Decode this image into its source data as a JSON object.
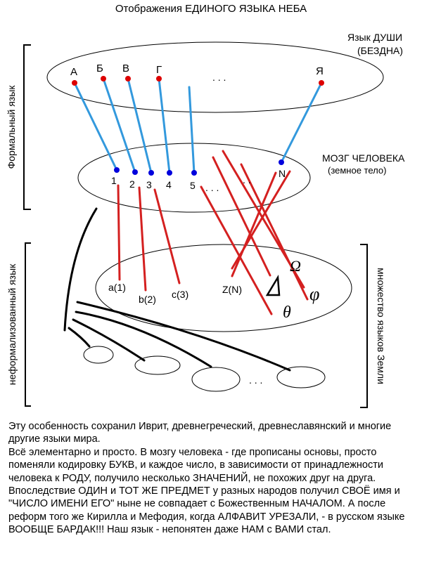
{
  "title": "Отображения ЕДИНОГО ЯЗЫКА НЕБА",
  "colors": {
    "link_blue": "#3399dd",
    "node_blue": "#0000dd",
    "node_red": "#dd0000",
    "link_red": "#d42020"
  },
  "soul": {
    "label_line1": "Язык ДУШИ",
    "label_line2": "(БЕЗДНА)",
    "letters": [
      "А",
      "Б",
      "В",
      "Г",
      "Я"
    ],
    "ellipsis": ". . ."
  },
  "brain": {
    "label_line1": "МОЗГ ЧЕЛОВЕКА",
    "label_line2": "(земное тело)",
    "numbers": [
      "1",
      "2",
      "3",
      "4",
      "5",
      "N"
    ],
    "ellipsis1": ". . .",
    "ellipsis2": ". ."
  },
  "side_labels": {
    "formal": "Формальный язык",
    "informal": "неформализованный язык",
    "earth": "множество языков Земли"
  },
  "earth": {
    "labels": [
      "a(1)",
      "b(2)",
      "c(3)",
      "Z(N)"
    ],
    "symbols": [
      "Ω",
      "φ",
      "θ"
    ],
    "ellipsis": ". . ."
  },
  "paragraphs": [
    "Эту особенность сохранил Иврит, древнегреческий, древнеславянский и многие другие языки мира.",
    "Всё элементарно и просто. В мозгу человека - где прописаны основы, просто поменяли кодировку БУКВ, и каждое число, в зависимости от принадлежности человека к РОДУ, получило несколько ЗНАЧЕНИЙ, не похожих друг на друга. Впоследствие ОДИН и ТОТ ЖЕ ПРЕДМЕТ у разных народов получил СВОЁ имя и \"ЧИСЛО ИМЕНИ ЕГО\" ныне не совпадает с Божественным НАЧАЛОМ. А после реформ того же Кирилла и Мефодия, когда АЛФАВИТ УРЕЗАЛИ, - в русском языке ВООБЩЕ БАРДАК!!! Наш язык - непонятен даже НАМ с ВАМИ стал."
  ]
}
